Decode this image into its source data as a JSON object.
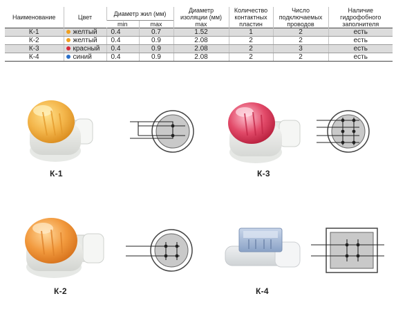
{
  "table": {
    "headers": {
      "name": "Наименование",
      "color": "Цвет",
      "core_diameter": "Диаметр жил (мм)",
      "min": "min",
      "max": "max",
      "insulation_l1": "Диаметр",
      "insulation_l2": "изоляции (мм)",
      "insulation_l3": "max",
      "plates_l1": "Количество",
      "plates_l2": "контактных",
      "plates_l3": "пластин",
      "wires_l1": "Число",
      "wires_l2": "подключаемых",
      "wires_l3": "проводов",
      "gel_l1": "Наличие",
      "gel_l2": "гидрофобного",
      "gel_l3": "заполнителя"
    },
    "rows": [
      {
        "name": "К-1",
        "dot": "#f0a020",
        "color": "желтый",
        "min": "0.4",
        "max": "0.7",
        "insulation": "1.52",
        "plates": "1",
        "wires": "2",
        "gel": "есть"
      },
      {
        "name": "К-2",
        "dot": "#f0a020",
        "color": "желтый",
        "min": "0.4",
        "max": "0.9",
        "insulation": "2.08",
        "plates": "2",
        "wires": "2",
        "gel": "есть"
      },
      {
        "name": "К-3",
        "dot": "#d8283a",
        "color": "красный",
        "min": "0.4",
        "max": "0.9",
        "insulation": "2.08",
        "plates": "2",
        "wires": "3",
        "gel": "есть"
      },
      {
        "name": "К-4",
        "dot": "#2a6fc9",
        "color": "синий",
        "min": "0.4",
        "max": "0.9",
        "insulation": "2.08",
        "plates": "2",
        "wires": "2",
        "gel": "есть"
      }
    ]
  },
  "products": [
    {
      "label": "К-1"
    },
    {
      "label": "К-3"
    },
    {
      "label": "К-2"
    },
    {
      "label": "К-4"
    }
  ]
}
